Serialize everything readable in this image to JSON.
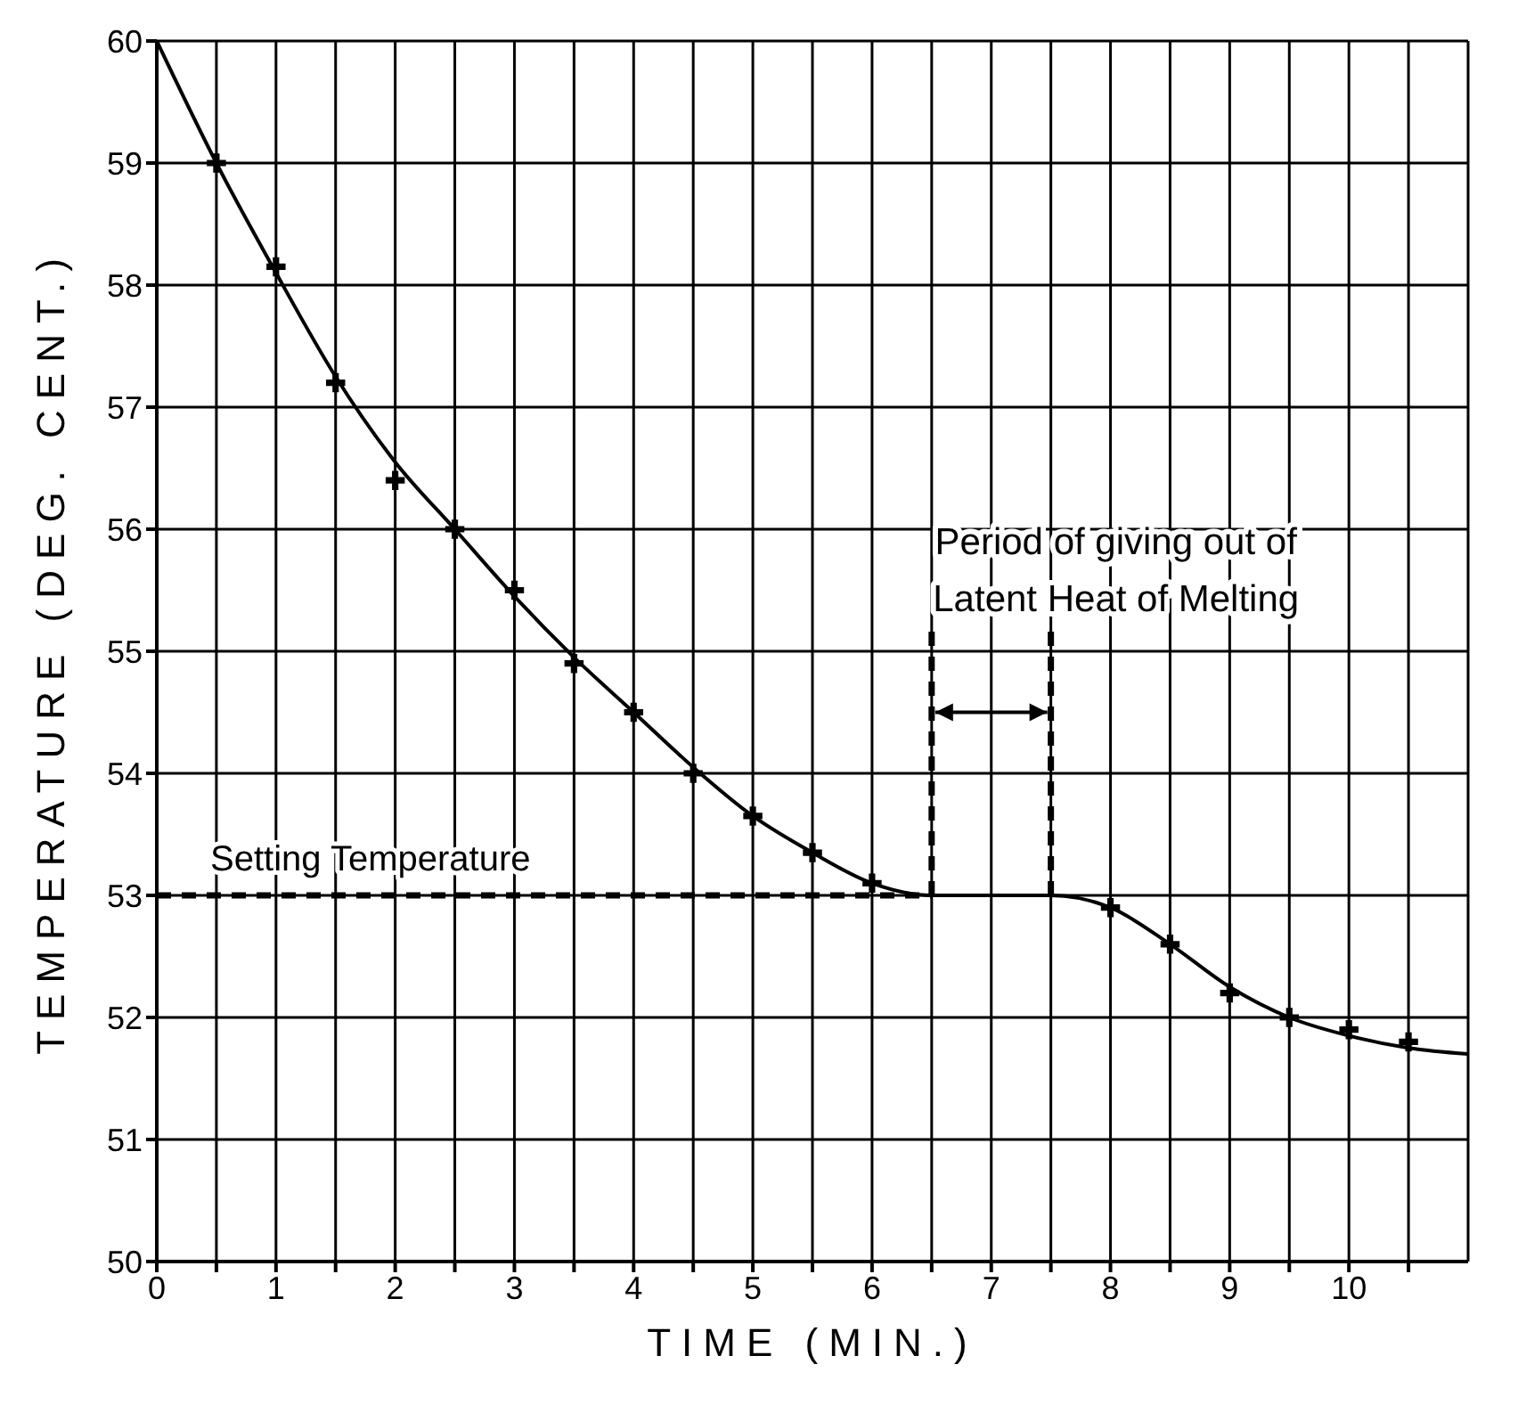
{
  "chart_data": {
    "type": "line",
    "xlabel": "TIME  (MIN.)",
    "ylabel": "TEMPERATURE (DEG. CENT.)",
    "series": [
      {
        "type": "line",
        "color": "#000000",
        "marker": "none",
        "x": [
          0,
          0.5,
          1,
          1.5,
          2,
          2.5,
          3,
          3.5,
          4,
          4.5,
          5,
          5.5,
          6,
          6.5,
          7,
          7.5,
          8,
          8.5,
          9,
          9.5,
          10,
          10.5,
          11
        ],
        "values": [
          60,
          59.0,
          58.1,
          57.25,
          56.55,
          56.0,
          55.45,
          54.95,
          54.5,
          54.05,
          53.65,
          53.35,
          53.1,
          53.0,
          53.0,
          53.0,
          52.9,
          52.6,
          52.25,
          52.0,
          51.85,
          51.75,
          51.7
        ]
      },
      {
        "type": "scatter",
        "color": "#000000",
        "marker": "cross",
        "x": [
          0.5,
          1,
          1.5,
          2,
          2.5,
          3,
          3.5,
          4,
          4.5,
          5,
          5.5,
          6,
          8,
          8.5,
          9,
          9.5,
          10,
          10.5
        ],
        "values": [
          59.0,
          58.15,
          57.2,
          56.4,
          56.0,
          55.5,
          54.9,
          54.5,
          54.0,
          53.65,
          53.35,
          53.1,
          52.9,
          52.6,
          52.2,
          52.0,
          51.9,
          51.8
        ]
      }
    ],
    "xlim": [
      0,
      11
    ],
    "xticks": [
      0,
      {
        "value": 0.5,
        "label": null
      },
      1,
      {
        "value": 1.5,
        "label": null
      },
      2,
      {
        "value": 2.5,
        "label": null
      },
      3,
      {
        "value": 3.5,
        "label": null
      },
      4,
      {
        "value": 4.5,
        "label": null
      },
      5,
      {
        "value": 5.5,
        "label": null
      },
      6,
      {
        "value": 6.5,
        "label": null
      },
      7,
      {
        "value": 7.5,
        "label": null
      },
      8,
      {
        "value": 8.5,
        "label": null
      },
      9,
      {
        "value": 9.5,
        "label": null
      },
      10,
      {
        "value": 10.5,
        "label": null
      }
    ],
    "ylim": [
      50,
      60
    ],
    "yticks": [
      50,
      51,
      52,
      53,
      54,
      55,
      56,
      57,
      58,
      59,
      60
    ],
    "grid": true,
    "ref_lines": [
      {
        "axis": "y",
        "value": 53,
        "label": "Setting Temperature",
        "line_style": "dashed"
      },
      {
        "axis": "x",
        "value": 6.5,
        "line_style": "dashed"
      },
      {
        "axis": "x",
        "value": 7.5,
        "line_style": "dashed"
      }
    ],
    "annotations": [
      "Period of giving out of Latent Heat of Melting"
    ]
  }
}
